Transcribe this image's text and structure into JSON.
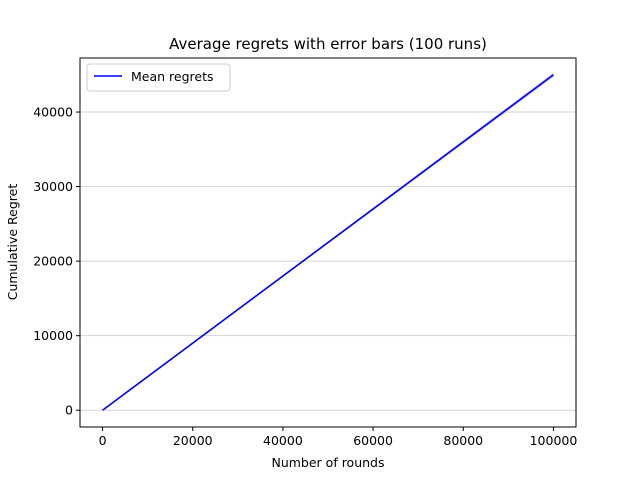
{
  "chart_data": {
    "type": "line",
    "title": "Average regrets with error bars (100 runs)",
    "xlabel": "Number of rounds",
    "ylabel": "Cumulative Regret",
    "xlim": [
      -5000,
      105000
    ],
    "ylim": [
      -2250,
      47250
    ],
    "x_ticks": [
      0,
      20000,
      40000,
      60000,
      80000,
      100000
    ],
    "x_tick_labels": [
      "0",
      "20000",
      "40000",
      "60000",
      "80000",
      "100000"
    ],
    "y_ticks": [
      0,
      10000,
      20000,
      30000,
      40000
    ],
    "y_tick_labels": [
      "0",
      "10000",
      "20000",
      "30000",
      "40000"
    ],
    "grid": "horizontal",
    "legend_position": "top-left",
    "series": [
      {
        "name": "Mean regrets",
        "color": "#0000ff",
        "band_color": "#c8c8f0",
        "x": [
          0,
          100000
        ],
        "y": [
          0,
          45000
        ],
        "error": [
          0,
          300
        ]
      }
    ]
  }
}
